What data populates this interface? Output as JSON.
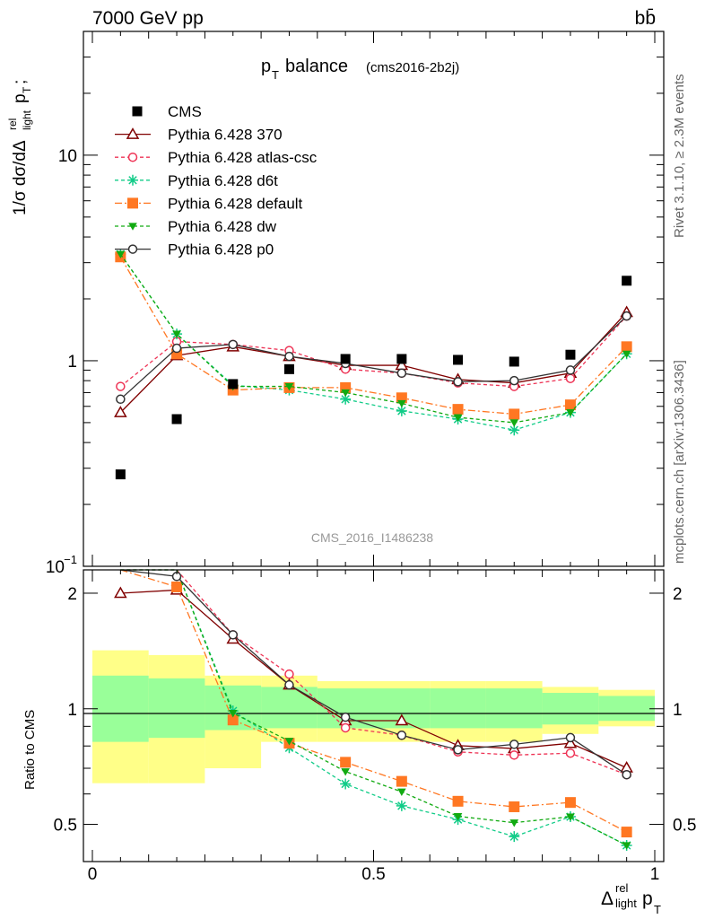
{
  "header": {
    "energy_label": "7000 GeV pp",
    "process_label": "bb̄",
    "side_label_top": "Rivet 3.1.10, ≥ 2.3M events",
    "side_label_bottom": "mcplots.cern.ch [arXiv:1306.3436]"
  },
  "chart_data": {
    "type": "scatter",
    "title": "pT balance",
    "subtitle": "(cms2016-2b2j)",
    "watermark": "CMS_2016_I1486238",
    "xlabel": "Δ^rel_light p_T",
    "ylabel": "1/σ dσ/dΔ^rel_light p_T ;",
    "ratio_ylabel": "Ratio to CMS",
    "xlim": [
      0,
      1
    ],
    "ylim": [
      0.1,
      40
    ],
    "ylog": true,
    "ratio_ylim": [
      0.4,
      2.3
    ],
    "ratio_ylog": true,
    "x": [
      0.05,
      0.15,
      0.25,
      0.35,
      0.45,
      0.55,
      0.65,
      0.75,
      0.85,
      0.95
    ],
    "x_ticks": [
      "0",
      "0.5",
      "1"
    ],
    "y_ticks": [
      "10^-1",
      "1",
      "10"
    ],
    "ratio_ticks": [
      "0.5",
      "1",
      "2"
    ],
    "data": {
      "name": "CMS",
      "values": [
        0.28,
        0.52,
        0.77,
        0.91,
        1.02,
        1.02,
        1.01,
        0.99,
        1.07,
        2.45
      ]
    },
    "series": [
      {
        "name": "Pythia 6.428 370",
        "color": "#800000",
        "marker": "triangle-open",
        "dash": "solid",
        "values": [
          0.56,
          1.06,
          1.17,
          1.05,
          0.95,
          0.95,
          0.81,
          0.78,
          0.87,
          1.72
        ]
      },
      {
        "name": "Pythia 6.428 atlas-csc",
        "color": "#ee3355",
        "marker": "circle-open",
        "dash": "4,3",
        "values": [
          0.75,
          1.24,
          1.2,
          1.12,
          0.91,
          0.87,
          0.78,
          0.75,
          0.82,
          1.65
        ]
      },
      {
        "name": "Pythia 6.428 d6t",
        "color": "#11cc88",
        "marker": "star",
        "dash": "4,3",
        "values": [
          3.3,
          1.35,
          0.76,
          0.72,
          0.65,
          0.57,
          0.52,
          0.46,
          0.56,
          1.08
        ]
      },
      {
        "name": "Pythia 6.428 default",
        "color": "#ff7722",
        "marker": "square",
        "dash": "8,3,2,3",
        "values": [
          3.2,
          1.08,
          0.72,
          0.74,
          0.74,
          0.66,
          0.58,
          0.55,
          0.61,
          1.17
        ]
      },
      {
        "name": "Pythia 6.428 dw",
        "color": "#11aa11",
        "marker": "triangle-down",
        "dash": "4,3",
        "values": [
          3.3,
          1.35,
          0.75,
          0.75,
          0.7,
          0.62,
          0.53,
          0.5,
          0.56,
          1.08
        ]
      },
      {
        "name": "Pythia 6.428 p0",
        "color": "#333333",
        "marker": "circle-open",
        "dash": "solid",
        "values": [
          0.65,
          1.15,
          1.2,
          1.05,
          0.97,
          0.87,
          0.79,
          0.8,
          0.9,
          1.65
        ]
      }
    ],
    "bands": {
      "edges": [
        0,
        0.1,
        0.2,
        0.3,
        0.4,
        0.5,
        0.6,
        0.7,
        0.8,
        0.9,
        1.0
      ],
      "stat_low": [
        0.82,
        0.84,
        0.88,
        0.89,
        0.89,
        0.89,
        0.89,
        0.89,
        0.91,
        0.93
      ],
      "stat_high": [
        1.22,
        1.2,
        1.15,
        1.14,
        1.13,
        1.13,
        1.13,
        1.13,
        1.1,
        1.08
      ],
      "total_low": [
        0.64,
        0.64,
        0.7,
        0.82,
        0.82,
        0.82,
        0.82,
        0.82,
        0.86,
        0.9
      ],
      "total_high": [
        1.42,
        1.38,
        1.22,
        1.22,
        1.18,
        1.18,
        1.18,
        1.18,
        1.14,
        1.12
      ],
      "stat_color": "#99ff99",
      "total_color": "#ffff88"
    }
  }
}
